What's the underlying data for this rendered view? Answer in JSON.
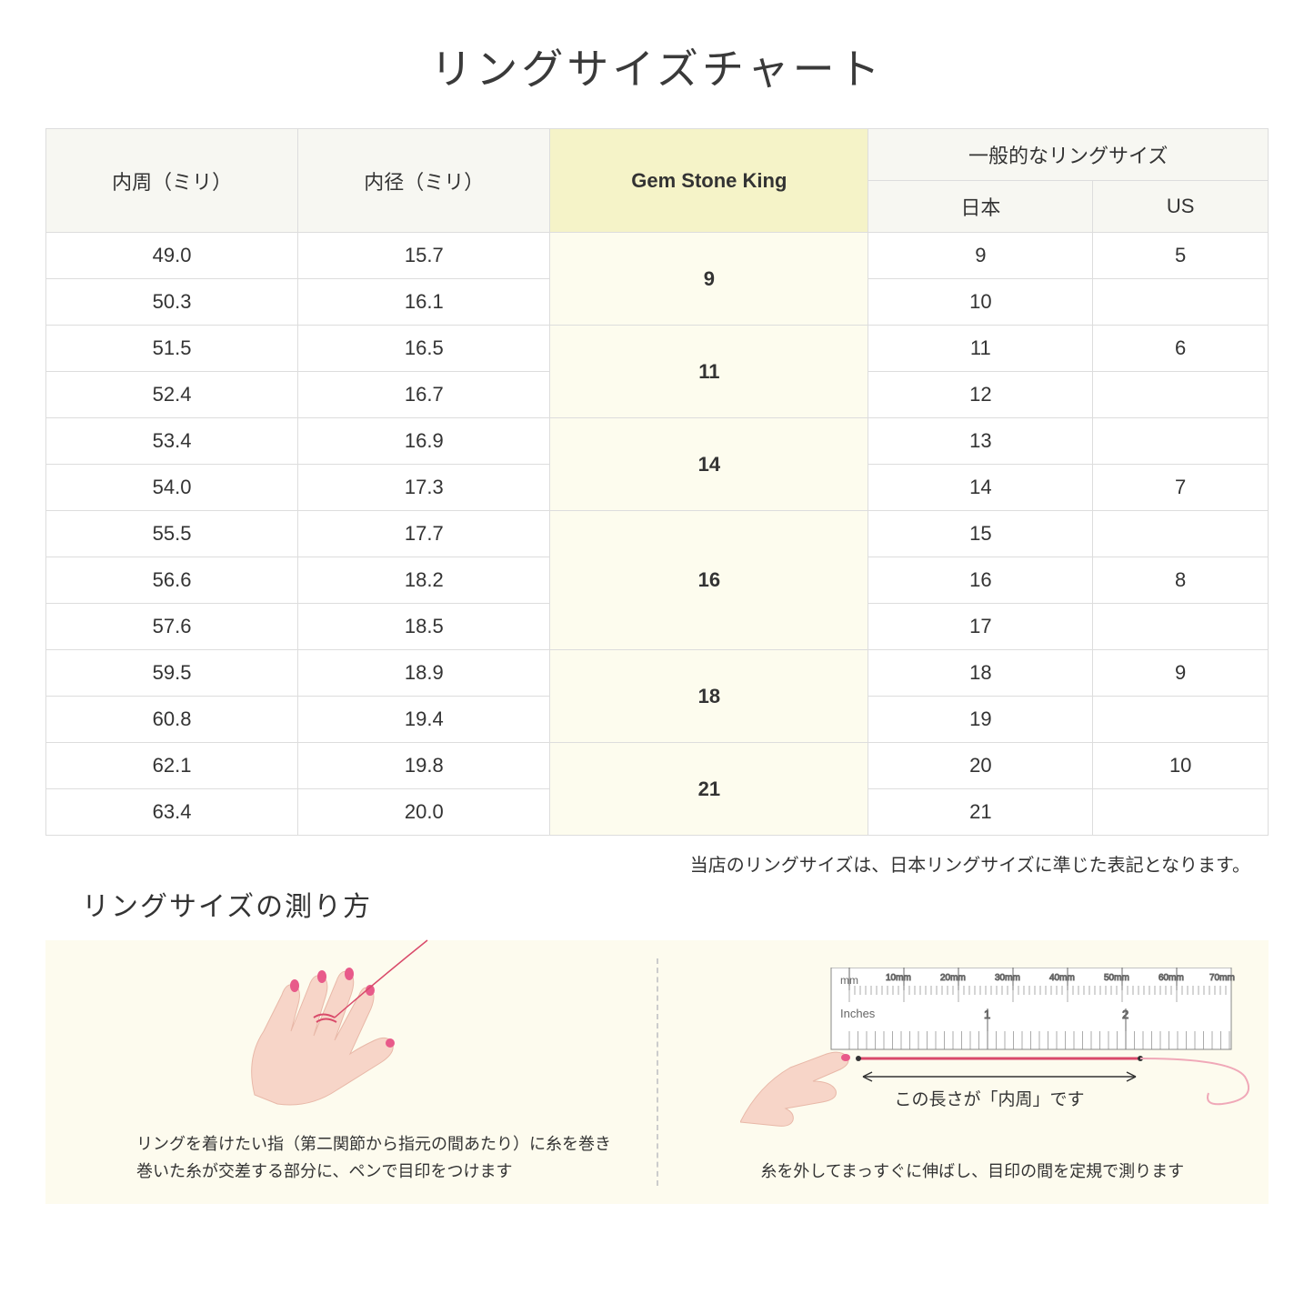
{
  "title": "リングサイズチャート",
  "headers": {
    "col1": "内周（ミリ）",
    "col2": "内径（ミリ）",
    "col3": "Gem Stone King",
    "group": "一般的なリングサイズ",
    "col4": "日本",
    "col5": "US"
  },
  "rows": [
    {
      "c": "49.0",
      "d": "15.7",
      "g": "9",
      "jp": "9",
      "us": "5",
      "gspan": 2
    },
    {
      "c": "50.3",
      "d": "16.1",
      "jp": "10",
      "us": ""
    },
    {
      "c": "51.5",
      "d": "16.5",
      "g": "11",
      "jp": "11",
      "us": "6",
      "gspan": 2
    },
    {
      "c": "52.4",
      "d": "16.7",
      "jp": "12",
      "us": ""
    },
    {
      "c": "53.4",
      "d": "16.9",
      "g": "14",
      "jp": "13",
      "us": "",
      "gspan": 2
    },
    {
      "c": "54.0",
      "d": "17.3",
      "jp": "14",
      "us": "7"
    },
    {
      "c": "55.5",
      "d": "17.7",
      "g": "16",
      "jp": "15",
      "us": "",
      "gspan": 3
    },
    {
      "c": "56.6",
      "d": "18.2",
      "jp": "16",
      "us": "8"
    },
    {
      "c": "57.6",
      "d": "18.5",
      "jp": "17",
      "us": ""
    },
    {
      "c": "59.5",
      "d": "18.9",
      "g": "18",
      "jp": "18",
      "us": "9",
      "gspan": 2
    },
    {
      "c": "60.8",
      "d": "19.4",
      "jp": "19",
      "us": ""
    },
    {
      "c": "62.1",
      "d": "19.8",
      "g": "21",
      "jp": "20",
      "us": "10",
      "gspan": 2
    },
    {
      "c": "63.4",
      "d": "20.0",
      "jp": "21",
      "us": ""
    }
  ],
  "note": "当店のリングサイズは、日本リングサイズに準じた表記となります。",
  "measure_title": "リングサイズの測り方",
  "instruction_left": "リングを着けたい指（第二関節から指元の間あたり）に糸を巻き\n巻いた糸が交差する部分に、ペンで目印をつけます",
  "instruction_right": "糸を外してまっすぐに伸ばし、目印の間を定規で測ります",
  "ruler_caption": "この長さが「内周」です",
  "ruler_mm": "mm",
  "ruler_inches": "Inches",
  "colors": {
    "header_bg": "#f7f7f2",
    "gsk_header_bg": "#f5f3c8",
    "gsk_cell_bg": "#fdfcee",
    "panel_bg": "#fdfbee",
    "border": "#dddddd",
    "skin": "#f7d5c8",
    "nail": "#e85a8a",
    "thread": "#d94a6a"
  }
}
